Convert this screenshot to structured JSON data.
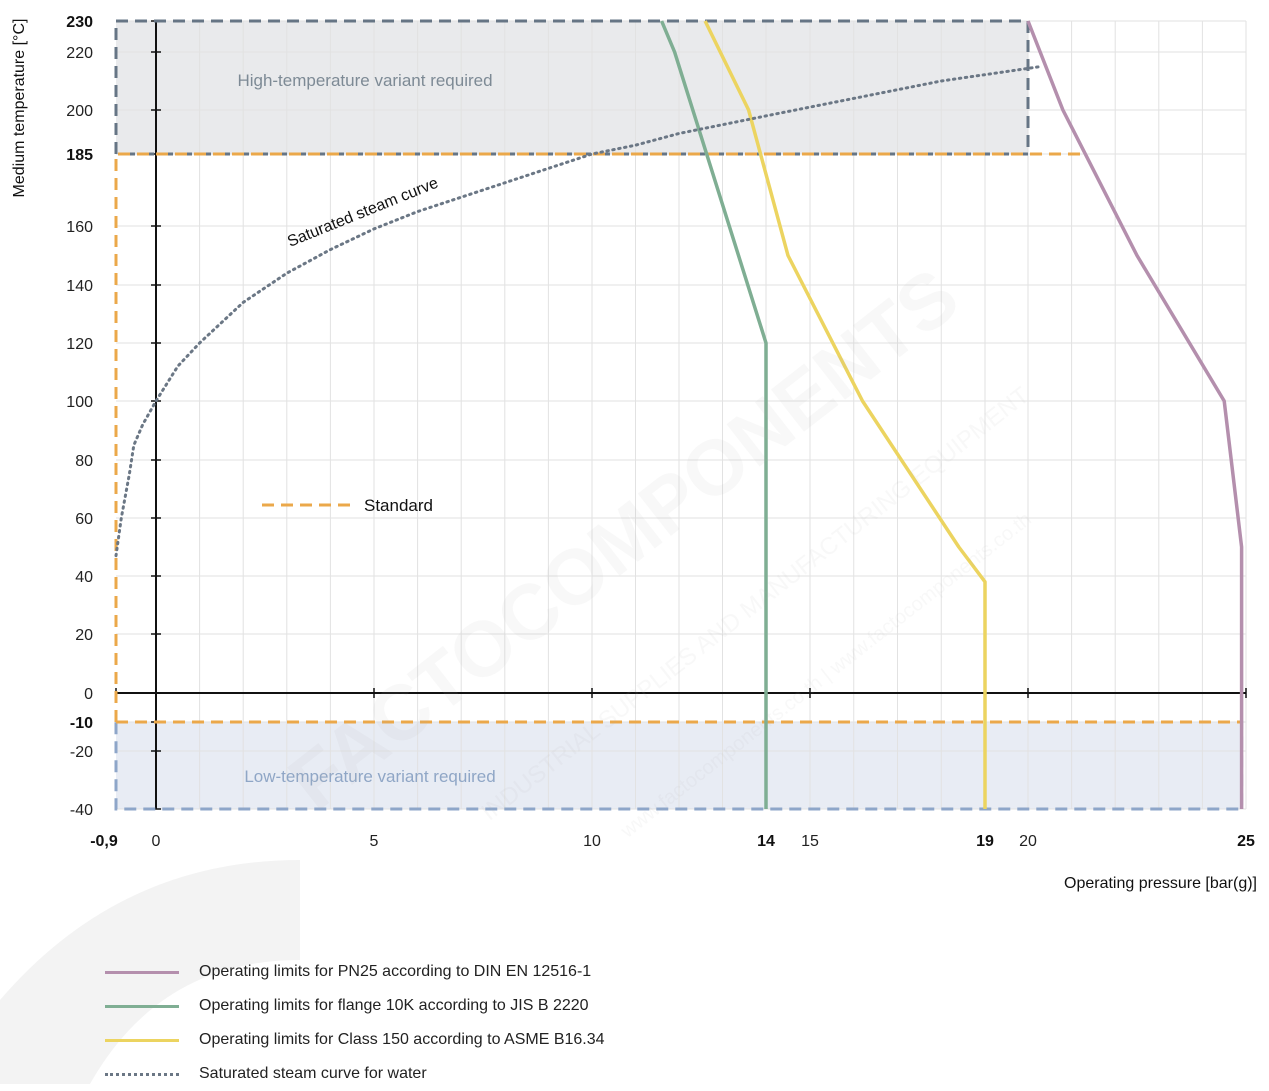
{
  "chart_data": {
    "type": "line",
    "xlabel": "Operating pressure [bar(g)]",
    "ylabel": "Medium temperature [°C]",
    "xlim": [
      -0.9,
      25
    ],
    "ylim": [
      -40,
      230
    ],
    "x_ticks": [
      {
        "value": -0.9,
        "label": "-0,9",
        "bold": true
      },
      {
        "value": 0,
        "label": "0",
        "bold": false
      },
      {
        "value": 5,
        "label": "5",
        "bold": false
      },
      {
        "value": 10,
        "label": "10",
        "bold": false
      },
      {
        "value": 14,
        "label": "14",
        "bold": true
      },
      {
        "value": 15,
        "label": "15",
        "bold": false
      },
      {
        "value": 19,
        "label": "19",
        "bold": true
      },
      {
        "value": 20,
        "label": "20",
        "bold": false
      },
      {
        "value": 25,
        "label": "25",
        "bold": true
      }
    ],
    "y_ticks": [
      {
        "value": 230,
        "label": "230",
        "bold": true
      },
      {
        "value": 220,
        "label": "220",
        "bold": false
      },
      {
        "value": 200,
        "label": "200",
        "bold": false
      },
      {
        "value": 185,
        "label": "185",
        "bold": true
      },
      {
        "value": 160,
        "label": "160",
        "bold": false
      },
      {
        "value": 140,
        "label": "140",
        "bold": false
      },
      {
        "value": 120,
        "label": "120",
        "bold": false
      },
      {
        "value": 100,
        "label": "100",
        "bold": false
      },
      {
        "value": 80,
        "label": "80",
        "bold": false
      },
      {
        "value": 60,
        "label": "60",
        "bold": false
      },
      {
        "value": 40,
        "label": "40",
        "bold": false
      },
      {
        "value": 20,
        "label": "20",
        "bold": false
      },
      {
        "value": 0,
        "label": "0",
        "bold": false
      },
      {
        "value": -10,
        "label": "-10",
        "bold": true
      },
      {
        "value": -20,
        "label": "-20",
        "bold": false
      },
      {
        "value": -40,
        "label": "-40",
        "bold": false
      }
    ],
    "grid": true,
    "series": [
      {
        "name": "Operating limits for PN25 according to DIN EN 12516-1",
        "color": "#b48fad",
        "style": "solid",
        "points": [
          [
            20,
            230
          ],
          [
            20.8,
            200
          ],
          [
            22.5,
            150
          ],
          [
            24.5,
            100
          ],
          [
            24.9,
            50
          ],
          [
            24.9,
            -40
          ]
        ]
      },
      {
        "name": "Operating limits for flange 10K according to JIS B 2220",
        "color": "#7fae93",
        "style": "solid",
        "points": [
          [
            11.6,
            230
          ],
          [
            11.9,
            220
          ],
          [
            14,
            120
          ],
          [
            14,
            -40
          ]
        ]
      },
      {
        "name": "Operating limits for Class 150 according to ASME B16.34",
        "color": "#ecd460",
        "style": "solid",
        "points": [
          [
            12.6,
            230
          ],
          [
            13.6,
            200
          ],
          [
            14.5,
            150
          ],
          [
            16.2,
            100
          ],
          [
            18.4,
            50
          ],
          [
            19,
            38
          ],
          [
            19,
            -40
          ]
        ]
      },
      {
        "name": "Saturated steam curve for water",
        "color": "#6b7785",
        "style": "dotted",
        "points": [
          [
            -0.9,
            47
          ],
          [
            -0.78,
            60
          ],
          [
            -0.6,
            75
          ],
          [
            -0.5,
            85
          ],
          [
            -0.3,
            92
          ],
          [
            0,
            100
          ],
          [
            0.5,
            112
          ],
          [
            1,
            120
          ],
          [
            2,
            134
          ],
          [
            3,
            144
          ],
          [
            4,
            152
          ],
          [
            5,
            159
          ],
          [
            6,
            165
          ],
          [
            7,
            170
          ],
          [
            8,
            175
          ],
          [
            9,
            180
          ],
          [
            10,
            185
          ],
          [
            11,
            188
          ],
          [
            12,
            192
          ],
          [
            13,
            195
          ],
          [
            14,
            198
          ],
          [
            15,
            201
          ],
          [
            16,
            204
          ],
          [
            18,
            210
          ],
          [
            20.3,
            215
          ]
        ]
      }
    ],
    "regions": [
      {
        "label": "High-temperature variant required",
        "x0": -0.9,
        "x1": 20,
        "y0": 185,
        "y1": 230,
        "fill": "#e9eaec",
        "text_color": "#7d8a95",
        "border": "#667585"
      },
      {
        "label": "Low-temperature variant required",
        "x0": -0.9,
        "x1": 24.9,
        "y0": -40,
        "y1": -10,
        "fill": "#e8ecf4",
        "text_color": "#8fa6c6",
        "border": "#8ea6c9"
      }
    ],
    "standard_region": {
      "label": "Standard",
      "x0": -0.9,
      "x1": 21.3,
      "y0": -10,
      "y1": 185,
      "color": "#eba84a"
    },
    "annotations": [
      {
        "text": "Saturated steam curve"
      }
    ],
    "watermark": {
      "brand": "FACTOCOMPONENTS",
      "tagline": "INDUSTRIAL SUPPLIES AND MANUFACTURING EQUIPMENT",
      "url": "www.factocomponents.co.th | www.factocomponents.co.th"
    }
  }
}
